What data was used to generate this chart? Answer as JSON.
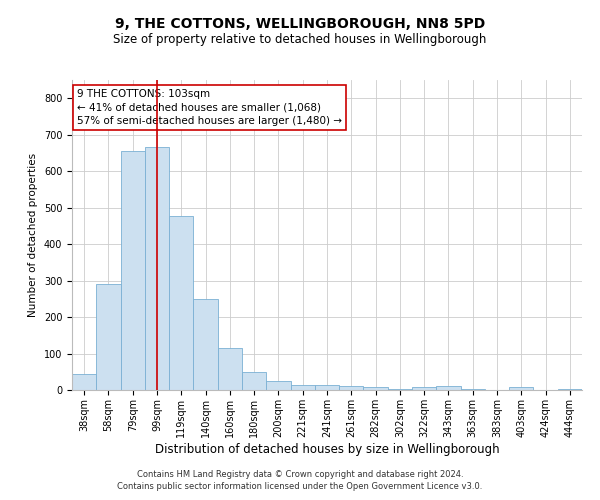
{
  "title": "9, THE COTTONS, WELLINGBOROUGH, NN8 5PD",
  "subtitle": "Size of property relative to detached houses in Wellingborough",
  "xlabel": "Distribution of detached houses by size in Wellingborough",
  "ylabel": "Number of detached properties",
  "categories": [
    "38sqm",
    "58sqm",
    "79sqm",
    "99sqm",
    "119sqm",
    "140sqm",
    "160sqm",
    "180sqm",
    "200sqm",
    "221sqm",
    "241sqm",
    "261sqm",
    "282sqm",
    "302sqm",
    "322sqm",
    "343sqm",
    "363sqm",
    "383sqm",
    "403sqm",
    "424sqm",
    "444sqm"
  ],
  "values": [
    45,
    290,
    655,
    665,
    478,
    250,
    115,
    50,
    25,
    15,
    15,
    10,
    8,
    2,
    8,
    10,
    3,
    1,
    8,
    1,
    3
  ],
  "bar_color": "#cce0f0",
  "bar_edge_color": "#7ab0d4",
  "marker_bar_index": 3,
  "marker_line_color": "#cc0000",
  "annotation_line1": "9 THE COTTONS: 103sqm",
  "annotation_line2": "← 41% of detached houses are smaller (1,068)",
  "annotation_line3": "57% of semi-detached houses are larger (1,480) →",
  "annotation_box_color": "#ffffff",
  "annotation_box_edge": "#cc0000",
  "ylim": [
    0,
    850
  ],
  "yticks": [
    0,
    100,
    200,
    300,
    400,
    500,
    600,
    700,
    800
  ],
  "footer_line1": "Contains HM Land Registry data © Crown copyright and database right 2024.",
  "footer_line2": "Contains public sector information licensed under the Open Government Licence v3.0.",
  "bg_color": "#ffffff",
  "grid_color": "#cccccc",
  "title_fontsize": 10,
  "subtitle_fontsize": 8.5,
  "ylabel_fontsize": 7.5,
  "xlabel_fontsize": 8.5,
  "tick_fontsize": 7,
  "annotation_fontsize": 7.5,
  "footer_fontsize": 6
}
